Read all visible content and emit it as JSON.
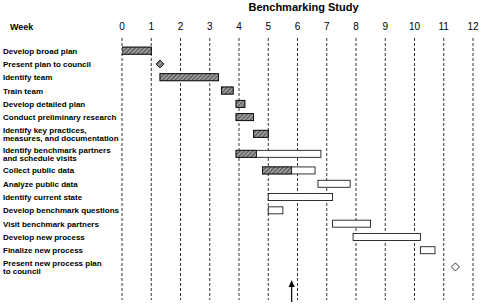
{
  "chart_data": {
    "type": "gantt",
    "title": "Benchmarking Study",
    "xlabel": "Week",
    "xlim": [
      0,
      12
    ],
    "xticks": [
      0,
      1,
      2,
      3,
      4,
      5,
      6,
      7,
      8,
      9,
      10,
      11,
      12
    ],
    "grid": true,
    "status_date": 5.8,
    "tasks": [
      {
        "name": "Develop broad plan",
        "type": "task",
        "start": 0,
        "end": 1,
        "progress": 1
      },
      {
        "name": "Present plan to council",
        "type": "milestone",
        "start": 1.3,
        "end": 1.3,
        "progress": 1.3
      },
      {
        "name": "Identify team",
        "type": "task",
        "start": 1.3,
        "end": 3.3,
        "progress": 3.3
      },
      {
        "name": "Train team",
        "type": "task",
        "start": 3.4,
        "end": 3.8,
        "progress": 3.8
      },
      {
        "name": "Develop detailed plan",
        "type": "task",
        "start": 3.9,
        "end": 4.2,
        "progress": 4.2
      },
      {
        "name": "Conduct preliminary research",
        "type": "task",
        "start": 3.9,
        "end": 4.5,
        "progress": 4.5
      },
      {
        "name": "Identify key practices,\nmeasures, and documentation",
        "type": "task",
        "start": 4.5,
        "end": 5,
        "progress": 5
      },
      {
        "name": "Identify benchmark partners\nand schedule visits",
        "type": "task",
        "start": 3.9,
        "end": 6.8,
        "progress": 4.6
      },
      {
        "name": "Collect public data",
        "type": "task",
        "start": 4.8,
        "end": 6.6,
        "progress": 5.8
      },
      {
        "name": "Analyze public data",
        "type": "task",
        "start": 6.7,
        "end": 7.8,
        "progress": null
      },
      {
        "name": "Identify current state",
        "type": "task",
        "start": 5,
        "end": 7.2,
        "progress": null
      },
      {
        "name": "Develop benchmark questions",
        "type": "task",
        "start": 5,
        "end": 5.5,
        "progress": null
      },
      {
        "name": "Visit benchmark partners",
        "type": "task",
        "start": 7.2,
        "end": 8.5,
        "progress": null
      },
      {
        "name": "Develop new process",
        "type": "task",
        "start": 7.9,
        "end": 10.2,
        "progress": null
      },
      {
        "name": "Finalize new process",
        "type": "task",
        "start": 10.2,
        "end": 10.7,
        "progress": null
      },
      {
        "name": "Present new process plan\nto council",
        "type": "milestone",
        "start": 11.4,
        "end": 11.4,
        "progress": null
      }
    ]
  }
}
